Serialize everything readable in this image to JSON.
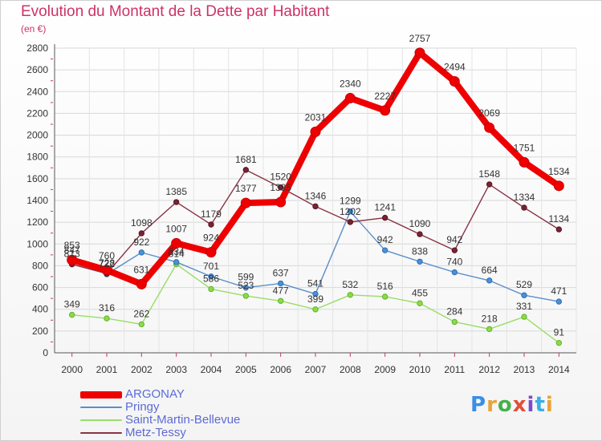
{
  "title": "Evolution du Montant de la Dette par Habitant",
  "unit": "(en €)",
  "brand": {
    "text": "Proxiti",
    "letters": [
      "P",
      "r",
      "o",
      "x",
      "i",
      "t",
      "i"
    ],
    "colors": [
      "#3a8ee6",
      "#e8a33a",
      "#46b04a",
      "#e0503a",
      "#7a4ccc",
      "#3aaee6",
      "#e8a33a"
    ]
  },
  "chart_data": {
    "type": "line",
    "title": "Evolution du Montant de la Dette par Habitant",
    "ylabel": "(en €)",
    "xlabel": "",
    "ylim": [
      0,
      2800
    ],
    "yticks": [
      0,
      200,
      400,
      600,
      800,
      1000,
      1200,
      1400,
      1600,
      1800,
      2000,
      2200,
      2400,
      2600,
      2800
    ],
    "x": [
      "2000",
      "2001",
      "2002",
      "2003",
      "2004",
      "2005",
      "2006",
      "2007",
      "2008",
      "2009",
      "2010",
      "2011",
      "2012",
      "2013",
      "2014"
    ],
    "grid": true,
    "legend_position": "bottom-left",
    "series": [
      {
        "name": "ARGONAY",
        "color": "#ee0000",
        "values": [
          853,
          760,
          631,
          1007,
          924,
          1377,
          1385,
          2031,
          2340,
          2227,
          2757,
          2494,
          2069,
          1751,
          1534
        ]
      },
      {
        "name": "Pringy",
        "color": "#5b8fc9",
        "values": [
          847,
          722,
          922,
          834,
          701,
          599,
          637,
          541,
          1299,
          942,
          838,
          740,
          664,
          529,
          471
        ]
      },
      {
        "name": "Saint-Martin-Bellevue",
        "color": "#99dd66",
        "values": [
          349,
          316,
          262,
          814,
          586,
          523,
          477,
          399,
          532,
          516,
          455,
          284,
          218,
          331,
          91
        ]
      },
      {
        "name": "Metz-Tessy",
        "color": "#883344",
        "values": [
          813,
          728,
          1098,
          1385,
          1179,
          1681,
          1520,
          1346,
          1202,
          1241,
          1090,
          942,
          1548,
          1334,
          1134
        ]
      }
    ]
  }
}
